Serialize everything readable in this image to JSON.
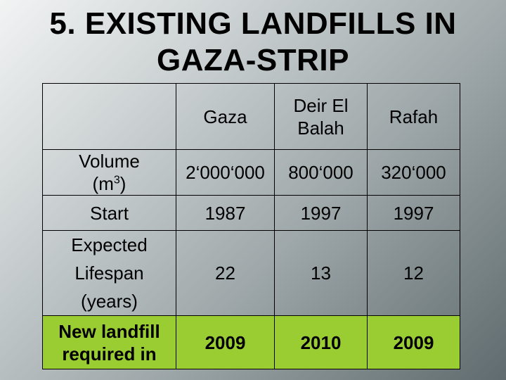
{
  "title": {
    "line1": "5. EXISTING LANDFILLS IN",
    "line2": "GAZA-STRIP"
  },
  "table": {
    "columns": [
      "Gaza",
      "Deir El Balah",
      "Rafah"
    ],
    "rows": [
      {
        "label": "Volume (m3)",
        "values": [
          "2‘000‘000",
          "800‘000",
          "320‘000"
        ]
      },
      {
        "label": "Start",
        "values": [
          "1987",
          "1997",
          "1997"
        ]
      },
      {
        "label": "Expected Lifespan (years)",
        "values": [
          "22",
          "13",
          "12"
        ]
      },
      {
        "label": "New landfill required in",
        "values": [
          "2009",
          "2010",
          "2009"
        ]
      }
    ]
  },
  "colors": {
    "highlight_row": "#9acd32"
  }
}
